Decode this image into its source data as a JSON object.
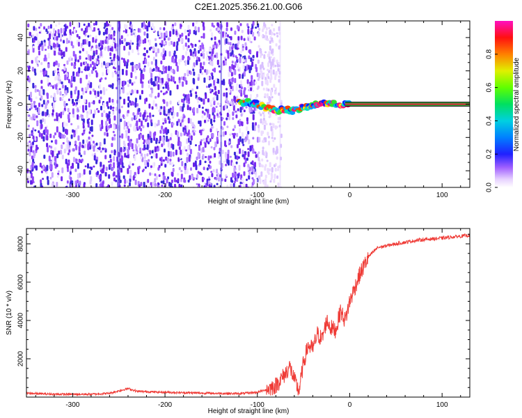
{
  "title": "C2E1.2025.356.21.00.G06",
  "colors": {
    "snr_line": "#ef3b36",
    "carrier_center": "#e8183c",
    "carrier_band": "#20b030"
  },
  "chart_data": [
    {
      "type": "heatmap",
      "xlabel": "Height of straight line (km)",
      "ylabel": "Frequency (Hz)",
      "xlim": [
        -350,
        130
      ],
      "ylim": [
        -50,
        50
      ],
      "xticks": [
        -300,
        -200,
        -100,
        0,
        100
      ],
      "yticks": [
        -40,
        -20,
        0,
        20,
        40
      ],
      "colorbar": {
        "label": "Normalized spectral amplitude",
        "range": [
          0,
          1
        ],
        "ticks": [
          "0.0",
          "0.2",
          "0.4",
          "0.6",
          "0.8"
        ],
        "tick_values": [
          0.0,
          0.2,
          0.4,
          0.6,
          0.8
        ],
        "colormap": "rainbow (white-lavender-violet-blue-cyan-green-yellow-orange-red-magenta)"
      },
      "regions": [
        {
          "description": "diffuse low-amplitude noise",
          "x_range": [
            -350,
            -100
          ],
          "freq_range": [
            -50,
            50
          ],
          "amplitude": 0.1
        },
        {
          "description": "sparse noise",
          "x_range": [
            -100,
            -75
          ],
          "freq_range": [
            -50,
            50
          ],
          "amplitude": 0.05
        },
        {
          "description": "wandering signal",
          "x_range": [
            -120,
            -5
          ],
          "freq_range": [
            -8,
            5
          ],
          "amplitude": 0.6
        },
        {
          "description": "stable carrier line",
          "x_range": [
            -5,
            130
          ],
          "freq_range": [
            -1,
            1
          ],
          "amplitude": 1.0
        }
      ],
      "carrier_track": {
        "x": [
          -120,
          -110,
          -100,
          -90,
          -80,
          -70,
          -60,
          -50,
          -40,
          -30,
          -20,
          -10,
          0,
          130
        ],
        "freq": [
          1,
          1,
          0,
          -2,
          -4,
          -3,
          -4,
          -2,
          -1,
          1,
          0,
          0,
          0,
          0
        ]
      }
    },
    {
      "type": "line",
      "xlabel": "Height of straight line (km)",
      "ylabel": "SNR (10 * v/v)",
      "xlim": [
        -350,
        130
      ],
      "ylim": [
        0,
        8800
      ],
      "xticks": [
        -300,
        -200,
        -100,
        0,
        100
      ],
      "yticks": [
        2000,
        4000,
        6000,
        8000
      ],
      "series": [
        {
          "name": "SNR",
          "x": [
            -350,
            -320,
            -280,
            -260,
            -240,
            -230,
            -200,
            -150,
            -120,
            -100,
            -90,
            -80,
            -70,
            -65,
            -60,
            -55,
            -50,
            -45,
            -40,
            -35,
            -30,
            -25,
            -20,
            -15,
            -10,
            -5,
            0,
            10,
            20,
            30,
            50,
            75,
            100,
            130
          ],
          "y": [
            200,
            150,
            150,
            200,
            450,
            300,
            250,
            200,
            180,
            250,
            400,
            600,
            1200,
            1600,
            900,
            300,
            1800,
            2700,
            2500,
            3300,
            3000,
            4000,
            3600,
            3500,
            4500,
            4000,
            5000,
            6300,
            7300,
            7800,
            8000,
            8200,
            8300,
            8450
          ]
        }
      ]
    }
  ]
}
